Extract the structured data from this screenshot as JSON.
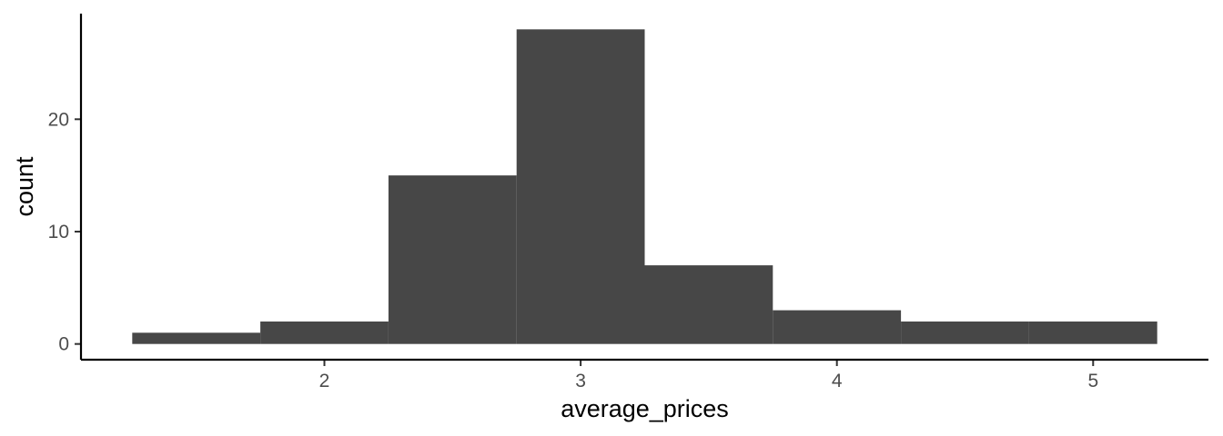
{
  "chart_data": {
    "type": "bar",
    "title": "",
    "xlabel": "average_prices",
    "ylabel": "count",
    "bin_width": 0.5,
    "bins": [
      {
        "start": 1.25,
        "end": 1.75,
        "count": 1
      },
      {
        "start": 1.75,
        "end": 2.25,
        "count": 2
      },
      {
        "start": 2.25,
        "end": 2.75,
        "count": 15
      },
      {
        "start": 2.75,
        "end": 3.25,
        "count": 28
      },
      {
        "start": 3.25,
        "end": 3.75,
        "count": 7
      },
      {
        "start": 3.75,
        "end": 4.25,
        "count": 3
      },
      {
        "start": 4.25,
        "end": 4.75,
        "count": 2
      },
      {
        "start": 4.75,
        "end": 5.25,
        "count": 2
      }
    ],
    "xlim": [
      1.05,
      5.45
    ],
    "ylim": [
      -1.4,
      29.4
    ],
    "x_ticks": [
      2,
      3,
      4,
      5
    ],
    "x_tick_labels": [
      "2",
      "3",
      "4",
      "5"
    ],
    "y_ticks": [
      0,
      10,
      20
    ],
    "y_tick_labels": [
      "0",
      "10",
      "20"
    ],
    "grid": false,
    "bar_color": "#474747"
  }
}
